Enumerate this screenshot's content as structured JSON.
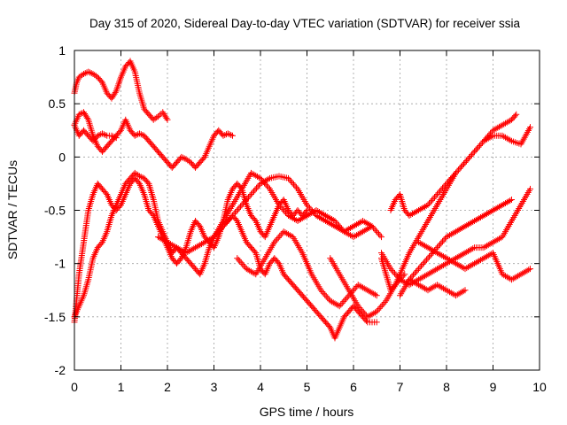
{
  "chart_data": {
    "type": "scatter",
    "title": "Day 315 of 2020, Sidereal Day-to-day VTEC variation (SDTVAR) for receiver ssia",
    "xlabel": "GPS time / hours",
    "ylabel": "SDTVAR / TECUs",
    "xlim": [
      0,
      10
    ],
    "ylim": [
      -2,
      1
    ],
    "xticks": [
      "0",
      "1",
      "2",
      "3",
      "4",
      "5",
      "6",
      "7",
      "8",
      "9",
      "10"
    ],
    "yticks": [
      "1",
      "0.5",
      "0",
      "-0.5",
      "-1",
      "-1.5",
      "-2"
    ],
    "grid": true,
    "marker": "+",
    "color": "#ff0000",
    "series": [
      {
        "x": [
          0.0,
          0.05,
          0.1,
          0.2,
          0.3,
          0.4,
          0.5,
          0.6,
          0.7,
          0.8,
          0.9,
          1.0,
          1.1,
          1.2,
          1.3,
          1.4,
          1.5,
          1.6,
          1.7,
          1.8,
          1.9,
          2.0
        ],
        "y": [
          0.6,
          0.7,
          0.75,
          0.78,
          0.8,
          0.78,
          0.75,
          0.7,
          0.6,
          0.55,
          0.62,
          0.75,
          0.85,
          0.9,
          0.8,
          0.6,
          0.45,
          0.4,
          0.35,
          0.38,
          0.42,
          0.35
        ]
      },
      {
        "x": [
          0.0,
          0.1,
          0.2,
          0.3,
          0.4,
          0.5,
          0.6,
          0.7,
          0.8,
          0.9,
          1.0,
          1.1,
          1.2,
          1.3,
          1.4,
          1.5,
          1.6,
          1.7,
          1.8,
          1.9,
          2.0,
          2.1,
          2.2,
          2.3,
          2.4,
          2.5,
          2.6,
          2.7,
          2.8,
          2.9,
          3.0,
          3.1,
          3.2,
          3.3,
          3.4
        ],
        "y": [
          0.3,
          0.4,
          0.42,
          0.35,
          0.2,
          0.1,
          0.05,
          0.1,
          0.15,
          0.2,
          0.25,
          0.35,
          0.25,
          0.2,
          0.22,
          0.2,
          0.15,
          0.1,
          0.05,
          0.0,
          -0.05,
          -0.1,
          -0.05,
          0.0,
          -0.02,
          -0.05,
          -0.1,
          -0.05,
          0.0,
          0.1,
          0.2,
          0.25,
          0.2,
          0.22,
          0.2
        ]
      },
      {
        "x": [
          0.0,
          0.05,
          0.1,
          0.2,
          0.3,
          0.4,
          0.5,
          0.6,
          0.7,
          0.8,
          0.9
        ],
        "y": [
          0.3,
          0.25,
          0.2,
          0.25,
          0.2,
          0.15,
          0.2,
          0.22,
          0.2,
          0.2,
          0.18
        ]
      },
      {
        "x": [
          0.0,
          0.1,
          0.2,
          0.3,
          0.4,
          0.5,
          0.6,
          0.7,
          0.8,
          0.9,
          1.0,
          1.1,
          1.2,
          1.3,
          1.4,
          1.5,
          1.6,
          1.7,
          1.8,
          1.9,
          2.0,
          2.1,
          2.2,
          2.3,
          2.4,
          2.5,
          2.6,
          2.7,
          2.8,
          2.9,
          3.0,
          3.1,
          3.2,
          3.3,
          3.4,
          3.5,
          3.6,
          3.7,
          3.8,
          3.9,
          4.0,
          4.1,
          4.2,
          4.3,
          4.4,
          4.5,
          4.6,
          4.7,
          4.8,
          4.9,
          5.0,
          5.1,
          5.2,
          5.3,
          5.4,
          5.5,
          5.6,
          5.7,
          5.8,
          5.9,
          6.0,
          6.1,
          6.2,
          6.3,
          6.4,
          6.5
        ],
        "y": [
          -1.5,
          -1.4,
          -1.3,
          -1.15,
          -0.95,
          -0.85,
          -0.8,
          -0.7,
          -0.55,
          -0.45,
          -0.35,
          -0.25,
          -0.2,
          -0.15,
          -0.18,
          -0.2,
          -0.25,
          -0.4,
          -0.6,
          -0.7,
          -0.8,
          -0.9,
          -0.85,
          -0.9,
          -0.95,
          -1.0,
          -1.05,
          -1.1,
          -1.0,
          -0.85,
          -0.75,
          -0.7,
          -0.65,
          -0.6,
          -0.55,
          -0.6,
          -0.7,
          -0.8,
          -0.85,
          -0.9,
          -1.05,
          -1.1,
          -1.0,
          -0.95,
          -1.0,
          -1.1,
          -1.15,
          -1.2,
          -1.25,
          -1.3,
          -1.35,
          -1.4,
          -1.45,
          -1.5,
          -1.55,
          -1.6,
          -1.7,
          -1.6,
          -1.5,
          -1.45,
          -1.4,
          -1.45,
          -1.5,
          -1.55,
          -1.55,
          -1.55
        ]
      },
      {
        "x": [
          0.0,
          0.1,
          0.2,
          0.3,
          0.4,
          0.5,
          0.6,
          0.7,
          0.8,
          0.9,
          1.0,
          1.1,
          1.2,
          1.3,
          1.4,
          1.5,
          1.6,
          1.7,
          1.8,
          1.9,
          2.0,
          2.1,
          2.2,
          2.3,
          2.4,
          2.5,
          2.6,
          2.7,
          2.8,
          2.9,
          3.0,
          3.1,
          3.2,
          3.3,
          3.4,
          3.5,
          3.6,
          3.7,
          3.8,
          3.9,
          4.0,
          4.1,
          4.2,
          4.3,
          4.4,
          4.5,
          4.6,
          4.7,
          4.8,
          4.9,
          5.0
        ],
        "y": [
          -1.55,
          -1.1,
          -0.8,
          -0.5,
          -0.35,
          -0.25,
          -0.3,
          -0.35,
          -0.45,
          -0.5,
          -0.45,
          -0.35,
          -0.25,
          -0.2,
          -0.25,
          -0.35,
          -0.5,
          -0.55,
          -0.65,
          -0.75,
          -0.85,
          -0.95,
          -1.0,
          -0.95,
          -0.85,
          -0.7,
          -0.6,
          -0.65,
          -0.75,
          -0.8,
          -0.85,
          -0.75,
          -0.6,
          -0.4,
          -0.3,
          -0.25,
          -0.3,
          -0.45,
          -0.55,
          -0.6,
          -0.7,
          -0.75,
          -0.65,
          -0.55,
          -0.45,
          -0.4,
          -0.5,
          -0.55,
          -0.5,
          -0.55,
          -0.5
        ]
      },
      {
        "x": [
          1.8,
          2.0,
          2.2,
          2.4,
          2.6,
          2.8,
          3.0,
          3.2,
          3.4,
          3.6,
          3.8,
          4.0,
          4.2,
          4.4,
          4.6,
          4.8,
          5.0,
          5.2,
          5.4,
          5.6,
          5.8,
          6.0,
          6.2,
          6.4,
          6.6
        ],
        "y": [
          -0.75,
          -0.8,
          -0.85,
          -0.9,
          -0.85,
          -0.8,
          -0.75,
          -0.65,
          -0.55,
          -0.45,
          -0.35,
          -0.25,
          -0.2,
          -0.18,
          -0.2,
          -0.3,
          -0.45,
          -0.55,
          -0.6,
          -0.65,
          -0.7,
          -0.65,
          -0.6,
          -0.65,
          -0.75
        ]
      },
      {
        "x": [
          3.0,
          3.2,
          3.4,
          3.6,
          3.8,
          4.0,
          4.2,
          4.4,
          4.6,
          4.8,
          5.0,
          5.2,
          5.4,
          5.6,
          5.8,
          6.0,
          6.2,
          6.4
        ],
        "y": [
          -0.75,
          -0.6,
          -0.45,
          -0.3,
          -0.15,
          -0.2,
          -0.3,
          -0.45,
          -0.55,
          -0.6,
          -0.55,
          -0.5,
          -0.55,
          -0.6,
          -0.7,
          -0.75,
          -0.7,
          -0.65
        ]
      },
      {
        "x": [
          3.5,
          3.7,
          3.9,
          4.1,
          4.3,
          4.5,
          4.7,
          4.9,
          5.1,
          5.3,
          5.5,
          5.7,
          5.9,
          6.1,
          6.3,
          6.5
        ],
        "y": [
          -0.95,
          -1.05,
          -1.1,
          -0.95,
          -0.8,
          -0.7,
          -0.75,
          -0.9,
          -1.1,
          -1.25,
          -1.35,
          -1.4,
          -1.3,
          -1.2,
          -1.25,
          -1.3
        ]
      },
      {
        "x": [
          5.5,
          5.7,
          5.9,
          6.1,
          6.3,
          6.5,
          6.7,
          6.9,
          7.1
        ],
        "y": [
          -0.95,
          -1.1,
          -1.25,
          -1.4,
          -1.5,
          -1.45,
          -1.35,
          -1.2,
          -1.1
        ]
      },
      {
        "x": [
          6.6,
          6.7,
          6.8,
          6.9,
          7.0,
          7.1,
          7.2,
          7.4,
          7.6,
          7.8,
          8.0,
          8.2,
          8.4,
          8.6,
          8.8,
          9.0,
          9.2,
          9.4,
          9.5
        ],
        "y": [
          -0.95,
          -1.1,
          -1.25,
          -1.2,
          -1.1,
          -1.0,
          -0.9,
          -0.75,
          -0.6,
          -0.45,
          -0.3,
          -0.15,
          -0.05,
          0.05,
          0.15,
          0.25,
          0.3,
          0.35,
          0.4
        ]
      },
      {
        "x": [
          6.8,
          6.9,
          7.0,
          7.1,
          7.2,
          7.4,
          7.6,
          7.8,
          8.0,
          8.2,
          8.4,
          8.6,
          8.8,
          9.0,
          9.2,
          9.4,
          9.6,
          9.8
        ],
        "y": [
          -0.5,
          -0.4,
          -0.35,
          -0.5,
          -0.55,
          -0.5,
          -0.45,
          -0.35,
          -0.25,
          -0.15,
          -0.05,
          0.05,
          0.15,
          0.2,
          0.2,
          0.15,
          0.12,
          0.28
        ]
      },
      {
        "x": [
          6.6,
          6.8,
          7.0,
          7.2,
          7.4,
          7.6,
          7.8,
          8.0,
          8.2,
          8.4,
          8.6,
          8.8,
          9.0,
          9.2,
          9.4,
          9.6,
          9.8
        ],
        "y": [
          -0.9,
          -1.05,
          -1.15,
          -1.2,
          -1.15,
          -1.1,
          -1.05,
          -1.0,
          -0.95,
          -0.9,
          -0.85,
          -0.85,
          -0.8,
          -0.75,
          -0.6,
          -0.45,
          -0.3
        ]
      },
      {
        "x": [
          7.0,
          7.2,
          7.4,
          7.6,
          7.8,
          8.0,
          8.2,
          8.4,
          8.6,
          8.8,
          9.0,
          9.2,
          9.4
        ],
        "y": [
          -1.3,
          -1.15,
          -1.05,
          -0.95,
          -0.85,
          -0.75,
          -0.7,
          -0.65,
          -0.6,
          -0.55,
          -0.5,
          -0.45,
          -0.4
        ]
      },
      {
        "x": [
          7.4,
          7.6,
          7.8,
          8.0,
          8.2,
          8.4,
          8.6,
          8.8,
          9.0,
          9.2,
          9.4,
          9.6,
          9.8
        ],
        "y": [
          -0.8,
          -0.85,
          -0.9,
          -0.95,
          -1.0,
          -1.05,
          -1.0,
          -0.95,
          -0.9,
          -1.1,
          -1.15,
          -1.1,
          -1.05
        ]
      },
      {
        "x": [
          7.2,
          7.4,
          7.6,
          7.8,
          8.0,
          8.2,
          8.4
        ],
        "y": [
          -1.15,
          -1.2,
          -1.25,
          -1.2,
          -1.25,
          -1.3,
          -1.25
        ]
      }
    ]
  }
}
